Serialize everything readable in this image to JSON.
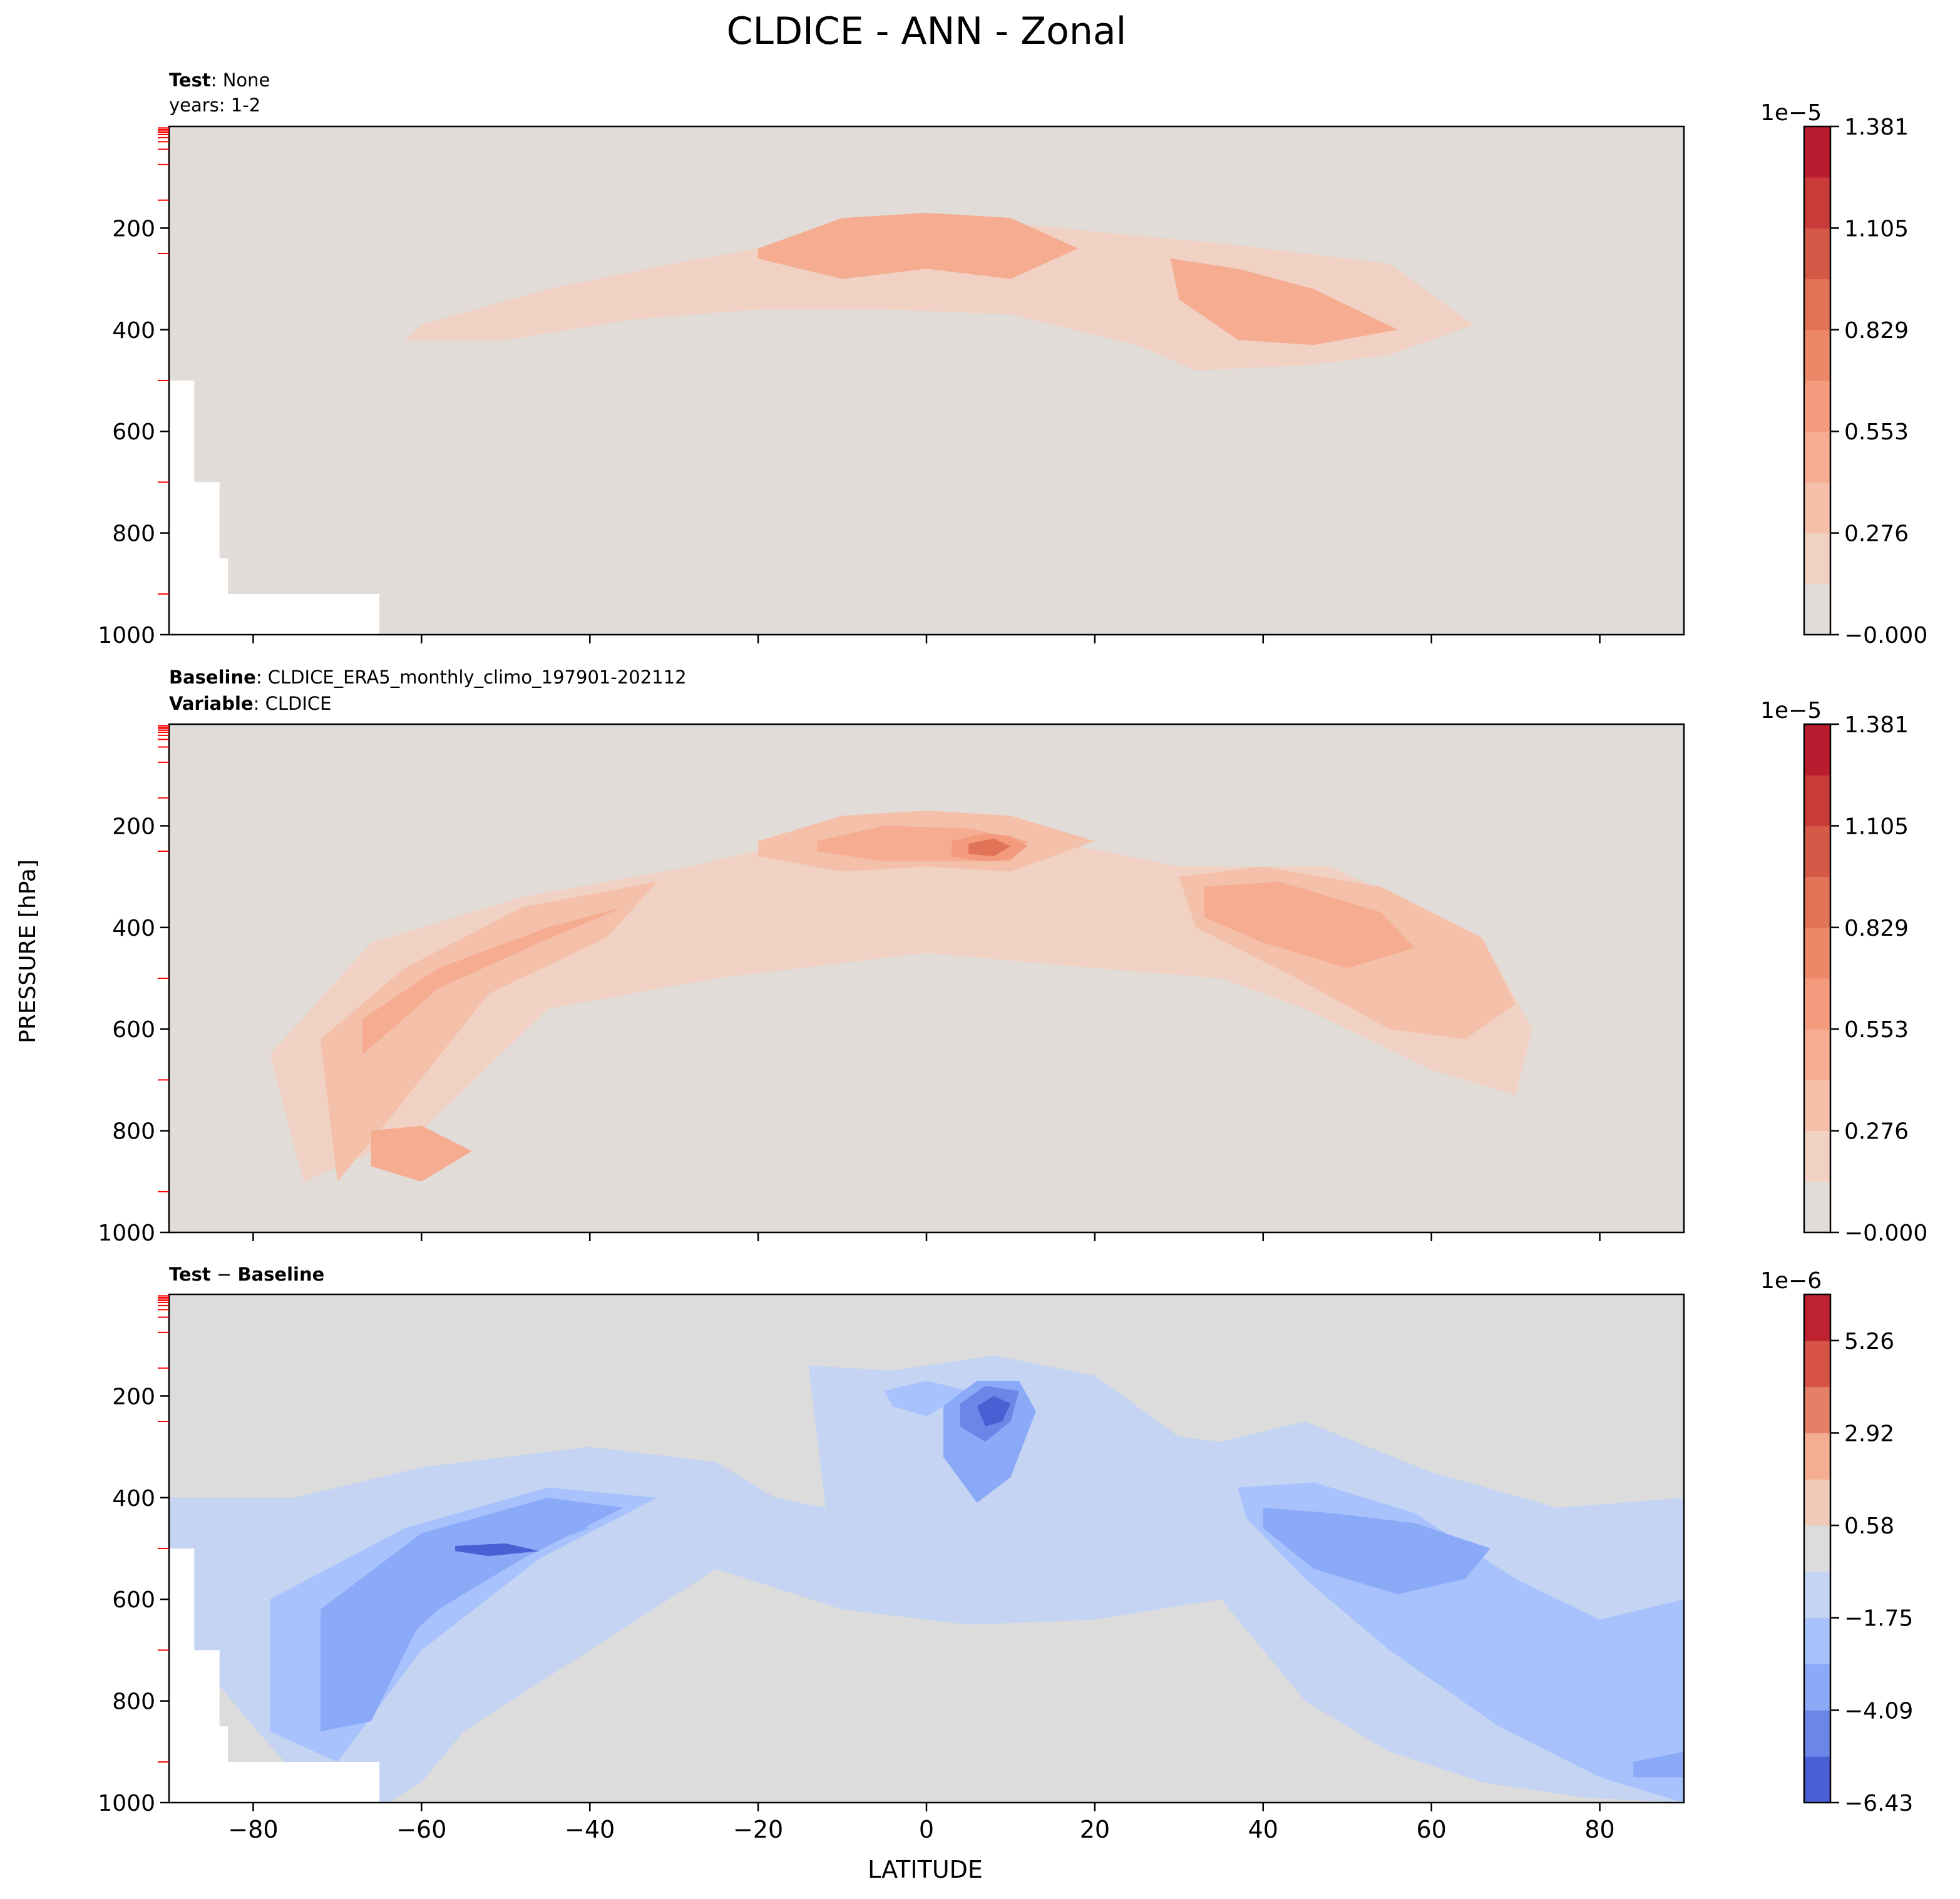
{
  "figure": {
    "title": "CLDICE - ANN - Zonal",
    "ylabel": "PRESSURE [hPa]",
    "xlabel": "LATITUDE"
  },
  "panels": {
    "test": {
      "label_bold": "Test",
      "label_rest": ": None",
      "line2": "years: 1-2"
    },
    "baseline": {
      "line1_bold": "Baseline",
      "line1_rest": ": CLDICE_ERA5_monthly_climo_197901-202112",
      "line2_bold": "Variable",
      "line2_rest": ": CLDICE"
    },
    "diff": {
      "label_bold_1": "Test",
      "label_mid": " − ",
      "label_bold_2": "Baseline"
    }
  },
  "colorbars": [
    {
      "exponent": "1e−5",
      "ticks": [
        "1.381",
        "1.105",
        "0.829",
        "0.553",
        "0.276",
        "−0.000"
      ],
      "colors": [
        "#e1dcd8",
        "#f0d1c3",
        "#f4c0aa",
        "#f5ac90",
        "#f39b7c",
        "#ec8868",
        "#e17457",
        "#d45a47",
        "#c83b38",
        "#b91c2e"
      ]
    },
    {
      "exponent": "1e−5",
      "ticks": [
        "1.381",
        "1.105",
        "0.829",
        "0.553",
        "0.276",
        "−0.000"
      ],
      "colors": [
        "#e1dcd8",
        "#f0d1c3",
        "#f4c0aa",
        "#f5ac90",
        "#f39b7c",
        "#ec8868",
        "#e17457",
        "#d45a47",
        "#c83b38",
        "#b91c2e"
      ]
    },
    {
      "exponent": "1e−6",
      "ticks": [
        "5.26",
        "2.92",
        "0.58",
        "−1.75",
        "−4.09",
        "−6.43"
      ],
      "colors": [
        "#4a5fd3",
        "#6a87e8",
        "#8aaaf8",
        "#a7c2fc",
        "#c4d4f2",
        "#dcdcdc",
        "#f0cbb8",
        "#f5ad92",
        "#e57f66",
        "#d85347",
        "#be2231"
      ]
    }
  ],
  "chart_data": [
    {
      "type": "heatmap",
      "title": "Test : None",
      "subtitle": "years: 1-2",
      "xlabel": "LATITUDE",
      "ylabel": "PRESSURE [hPa]",
      "xlim": [
        -90,
        90
      ],
      "ylim": [
        1000,
        0
      ],
      "x_ticks": [
        "−80",
        "−60",
        "−40",
        "−20",
        "0",
        "20",
        "40",
        "60",
        "80"
      ],
      "y_ticks": [
        "200",
        "400",
        "600",
        "800",
        "1000"
      ],
      "colorbar_exponent": "1e−5",
      "colorbar_ticks": [
        1.381,
        1.105,
        0.829,
        0.553,
        0.276,
        -0.0
      ],
      "contours": [
        {
          "level": 0.8,
          "x": [
            -60,
            -45,
            -30,
            -20,
            -5,
            10,
            25,
            35,
            45,
            55,
            65,
            55,
            45,
            32,
            25,
            10,
            -5,
            -20,
            -35,
            -50,
            -62
          ],
          "y": [
            390,
            320,
            270,
            240,
            200,
            190,
            215,
            230,
            250,
            270,
            390,
            450,
            470,
            480,
            430,
            370,
            360,
            360,
            380,
            420,
            420
          ]
        },
        {
          "level": 3.5,
          "x": [
            -20,
            -10,
            0,
            10,
            18,
            10,
            0,
            -10,
            -20
          ],
          "y": [
            240,
            180,
            170,
            180,
            240,
            300,
            280,
            300,
            260
          ]
        },
        {
          "level": 4.5,
          "x": [
            -14,
            -5,
            3,
            12,
            16,
            10,
            3,
            -6,
            -14
          ],
          "y": [
            250,
            210,
            220,
            210,
            250,
            290,
            270,
            290,
            270
          ]
        },
        {
          "level": 4.0,
          "x": [
            29,
            37,
            46,
            56,
            46,
            37,
            30
          ],
          "y": [
            260,
            280,
            320,
            400,
            430,
            420,
            340
          ]
        }
      ]
    },
    {
      "type": "heatmap",
      "title": "Baseline : CLDICE_ERA5_monthly_climo_197901-202112",
      "subtitle": "Variable : CLDICE",
      "xlabel": "LATITUDE",
      "ylabel": "PRESSURE [hPa]",
      "xlim": [
        -90,
        90
      ],
      "ylim": [
        1000,
        0
      ],
      "x_ticks": [
        "−80",
        "−60",
        "−40",
        "−20",
        "0",
        "20",
        "40",
        "60",
        "80"
      ],
      "y_ticks": [
        "200",
        "400",
        "600",
        "800",
        "1000"
      ],
      "colorbar_exponent": "1e−5",
      "colorbar_ticks": [
        1.381,
        1.105,
        0.829,
        0.553,
        0.276,
        -0.0
      ],
      "contours": [
        {
          "level": 1.5,
          "x": [
            -78,
            -66,
            -48,
            -28,
            -18,
            0,
            18,
            30,
            48,
            66,
            72,
            70,
            60,
            45,
            35,
            20,
            0,
            -25,
            -45,
            -60,
            -74
          ],
          "y": [
            650,
            430,
            340,
            280,
            240,
            200,
            240,
            280,
            280,
            420,
            600,
            730,
            680,
            560,
            500,
            480,
            450,
            500,
            560,
            800,
            900
          ]
        },
        {
          "level": 2.5,
          "x": [
            -72,
            -62,
            -48,
            -32,
            -38,
            -52,
            -64,
            -70
          ],
          "y": [
            620,
            480,
            360,
            310,
            420,
            530,
            780,
            900
          ]
        },
        {
          "level": 3.5,
          "x": [
            -67,
            -58,
            -45,
            -36,
            -46,
            -58,
            -67
          ],
          "y": [
            580,
            480,
            400,
            360,
            430,
            520,
            650
          ]
        },
        {
          "level": 4.0,
          "x": [
            -66,
            -60,
            -54,
            -60,
            -66
          ],
          "y": [
            800,
            790,
            840,
            900,
            870
          ]
        },
        {
          "level": 3.0,
          "x": [
            -20,
            -10,
            0,
            10,
            20,
            10,
            0,
            -10,
            -20
          ],
          "y": [
            230,
            180,
            170,
            180,
            230,
            290,
            280,
            290,
            260
          ]
        },
        {
          "level": 4.5,
          "x": [
            -13,
            -5,
            5,
            12,
            10,
            5,
            -5,
            -13
          ],
          "y": [
            230,
            200,
            205,
            230,
            270,
            270,
            270,
            250
          ]
        },
        {
          "level": 6.0,
          "x": [
            3,
            7,
            10,
            12,
            10,
            7,
            3
          ],
          "y": [
            230,
            215,
            220,
            240,
            265,
            270,
            260
          ]
        },
        {
          "level": 8.0,
          "x": [
            5,
            8,
            10,
            8,
            5
          ],
          "y": [
            235,
            225,
            240,
            260,
            255
          ]
        },
        {
          "level": 3.0,
          "x": [
            30,
            40,
            54,
            66,
            70,
            64,
            55,
            44,
            32
          ],
          "y": [
            300,
            280,
            320,
            420,
            550,
            620,
            600,
            500,
            400
          ]
        },
        {
          "level": 4.0,
          "x": [
            33,
            42,
            54,
            58,
            50,
            40,
            33
          ],
          "y": [
            320,
            310,
            370,
            440,
            480,
            430,
            380
          ]
        }
      ]
    },
    {
      "type": "heatmap",
      "title": "Test − Baseline",
      "xlabel": "LATITUDE",
      "ylabel": "PRESSURE [hPa]",
      "xlim": [
        -90,
        90
      ],
      "ylim": [
        1000,
        0
      ],
      "x_ticks": [
        "−80",
        "−60",
        "−40",
        "−20",
        "0",
        "20",
        "40",
        "60",
        "80"
      ],
      "y_ticks": [
        "200",
        "400",
        "600",
        "800",
        "1000"
      ],
      "colorbar_exponent": "1e−6",
      "colorbar_ticks": [
        5.26,
        2.92,
        0.58,
        -1.75,
        -4.09,
        -6.43
      ],
      "contours": [
        {
          "level": -1.0,
          "x": [
            -90,
            -75,
            -60,
            -40,
            -25,
            -18,
            -12,
            -14,
            -4,
            8,
            20,
            30,
            35,
            45,
            60,
            75,
            90,
            90,
            78,
            66,
            55,
            45,
            35,
            20,
            5,
            -10,
            -25,
            -40,
            -55,
            -60,
            -64,
            -72,
            -80,
            -90
          ],
          "y": [
            400,
            400,
            340,
            300,
            330,
            400,
            420,
            140,
            150,
            120,
            160,
            280,
            290,
            250,
            350,
            420,
            400,
            1000,
            990,
            960,
            900,
            800,
            600,
            640,
            650,
            620,
            540,
            700,
            860,
            960,
            1000,
            1000,
            850,
            650
          ]
        },
        {
          "level": -2.0,
          "x": [
            -78,
            -62,
            -45,
            -32,
            -46,
            -60,
            -70,
            -78
          ],
          "y": [
            600,
            460,
            380,
            400,
            520,
            700,
            920,
            860
          ]
        },
        {
          "level": -3.0,
          "x": [
            -72,
            -60,
            -45,
            -36,
            -48,
            -60,
            -66,
            -72
          ],
          "y": [
            620,
            470,
            400,
            420,
            520,
            640,
            840,
            860
          ]
        },
        {
          "level": -4.0,
          "x": [
            -67,
            -58,
            -46,
            -40,
            -52,
            -62,
            -67
          ],
          "y": [
            600,
            500,
            440,
            460,
            530,
            680,
            780
          ]
        },
        {
          "level": -5.5,
          "x": [
            -56,
            -50,
            -46,
            -52,
            -56
          ],
          "y": [
            495,
            490,
            505,
            515,
            505
          ]
        },
        {
          "level": -2.5,
          "x": [
            -5,
            0,
            5,
            0,
            -4
          ],
          "y": [
            190,
            170,
            190,
            240,
            220
          ]
        },
        {
          "level": -3.0,
          "x": [
            2,
            6,
            11,
            13,
            10,
            6,
            2
          ],
          "y": [
            220,
            170,
            170,
            230,
            360,
            410,
            320
          ]
        },
        {
          "level": -4.5,
          "x": [
            4,
            7,
            11,
            10,
            7,
            4
          ],
          "y": [
            215,
            180,
            190,
            250,
            290,
            260
          ]
        },
        {
          "level": -6.0,
          "x": [
            6,
            8,
            10,
            9,
            7
          ],
          "y": [
            220,
            200,
            215,
            250,
            260
          ]
        },
        {
          "level": -2.5,
          "x": [
            37,
            46,
            58,
            70,
            80,
            90,
            90,
            80,
            68,
            55,
            45,
            38
          ],
          "y": [
            380,
            370,
            430,
            560,
            640,
            600,
            1000,
            950,
            850,
            700,
            560,
            440
          ]
        },
        {
          "level": -3.5,
          "x": [
            40,
            48,
            58,
            67,
            64,
            56,
            46,
            40
          ],
          "y": [
            420,
            430,
            450,
            500,
            560,
            590,
            540,
            460
          ]
        },
        {
          "level": -4.0,
          "x": [
            84,
            90,
            90,
            84
          ],
          "y": [
            920,
            900,
            950,
            950
          ]
        }
      ]
    }
  ]
}
